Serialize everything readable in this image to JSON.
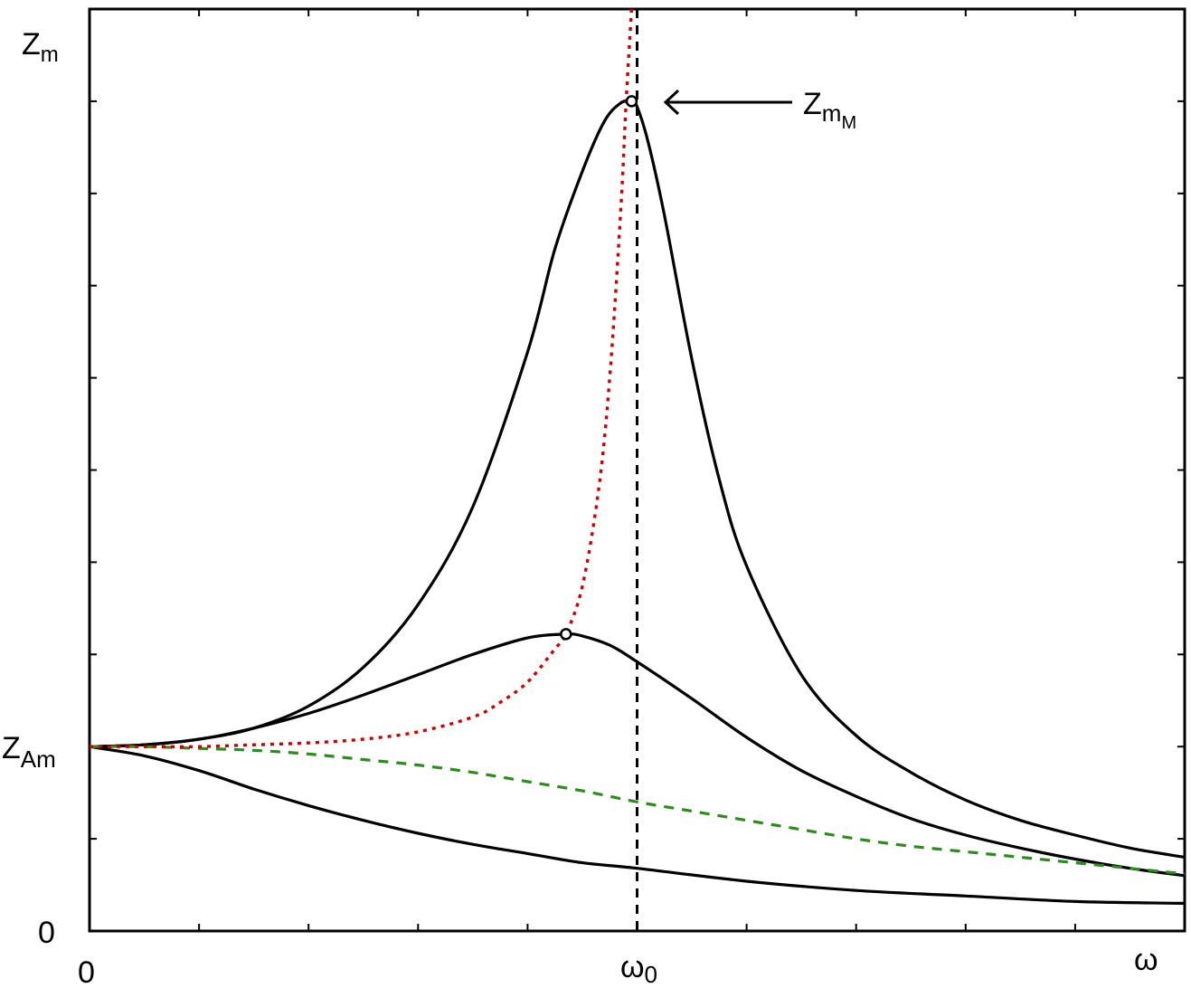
{
  "chart_data": {
    "type": "line",
    "title": "",
    "xlabel": "ω",
    "ylabel_main": "Z",
    "ylabel_sub": "m",
    "xlim": [
      0,
      2
    ],
    "ylim": [
      0,
      5
    ],
    "x_ticks_major": [
      0,
      1
    ],
    "x_tick_labels": [
      {
        "x": 0,
        "main": "0",
        "sub": ""
      },
      {
        "x": 1,
        "main": "ω",
        "sub": "0"
      }
    ],
    "y_tick_labels": [
      {
        "y": 0,
        "main": "0",
        "sub": ""
      },
      {
        "y": 1,
        "main": "Z",
        "sub": "Am"
      }
    ],
    "grid": false,
    "reference_line": {
      "x": 1,
      "style": "dashed",
      "color": "#000000"
    },
    "annotation": {
      "main": "Z",
      "sub": "m",
      "subsub": "M",
      "points_to": [
        0.99,
        4.5
      ]
    },
    "series": [
      {
        "style": "solid",
        "color": "#000000",
        "x": [
          0,
          0.1,
          0.2,
          0.3,
          0.4,
          0.5,
          0.6,
          0.7,
          0.8,
          0.85,
          0.9,
          0.94,
          0.97,
          0.99,
          1.0,
          1.02,
          1.05,
          1.1,
          1.15,
          1.2,
          1.3,
          1.4,
          1.5,
          1.6,
          1.7,
          1.8,
          1.9,
          2.0
        ],
        "y": [
          1.0,
          1.01,
          1.04,
          1.1,
          1.22,
          1.43,
          1.77,
          2.3,
          3.14,
          3.7,
          4.12,
          4.39,
          4.49,
          4.5,
          4.47,
          4.28,
          3.88,
          3.1,
          2.45,
          1.98,
          1.39,
          1.06,
          0.86,
          0.71,
          0.6,
          0.52,
          0.45,
          0.4
        ],
        "peak_marker": [
          0.99,
          4.5
        ]
      },
      {
        "style": "solid",
        "color": "#000000",
        "x": [
          0,
          0.1,
          0.2,
          0.3,
          0.4,
          0.5,
          0.6,
          0.7,
          0.8,
          0.87,
          0.9,
          0.95,
          1.0,
          1.1,
          1.2,
          1.3,
          1.4,
          1.5,
          1.6,
          1.7,
          1.8,
          1.9,
          2.0
        ],
        "y": [
          1.0,
          1.01,
          1.04,
          1.1,
          1.18,
          1.28,
          1.39,
          1.5,
          1.59,
          1.61,
          1.6,
          1.55,
          1.46,
          1.26,
          1.05,
          0.87,
          0.73,
          0.61,
          0.52,
          0.45,
          0.39,
          0.34,
          0.3
        ],
        "peak_marker": [
          0.87,
          1.61
        ]
      },
      {
        "style": "solid",
        "color": "#000000",
        "x": [
          0,
          0.1,
          0.2,
          0.3,
          0.4,
          0.5,
          0.6,
          0.7,
          0.8,
          0.9,
          1.0,
          1.2,
          1.4,
          1.6,
          1.8,
          2.0
        ],
        "y": [
          1.0,
          0.95,
          0.87,
          0.77,
          0.68,
          0.6,
          0.53,
          0.47,
          0.42,
          0.37,
          0.34,
          0.27,
          0.22,
          0.19,
          0.16,
          0.15
        ]
      },
      {
        "style": "dashed",
        "color": "#2e8b1e",
        "x": [
          0,
          0.1,
          0.2,
          0.3,
          0.4,
          0.5,
          0.6,
          0.7,
          0.8,
          0.9,
          1.0,
          1.1,
          1.2,
          1.3,
          1.4,
          1.5,
          1.6,
          1.7,
          1.8,
          1.9,
          2.0
        ],
        "y": [
          1.0,
          1.0,
          0.99,
          0.98,
          0.96,
          0.93,
          0.9,
          0.86,
          0.81,
          0.76,
          0.7,
          0.65,
          0.6,
          0.55,
          0.5,
          0.46,
          0.43,
          0.4,
          0.37,
          0.34,
          0.31
        ]
      },
      {
        "style": "dotted",
        "color": "#cc0000",
        "x": [
          0,
          0.1,
          0.2,
          0.3,
          0.4,
          0.5,
          0.6,
          0.7,
          0.75,
          0.8,
          0.85,
          0.87,
          0.9,
          0.93,
          0.95,
          0.97,
          0.98,
          0.99
        ],
        "y": [
          1.0,
          1.0,
          1.0,
          1.01,
          1.02,
          1.04,
          1.08,
          1.16,
          1.24,
          1.35,
          1.53,
          1.61,
          1.87,
          2.4,
          3.0,
          3.9,
          4.5,
          5.0
        ]
      }
    ]
  }
}
